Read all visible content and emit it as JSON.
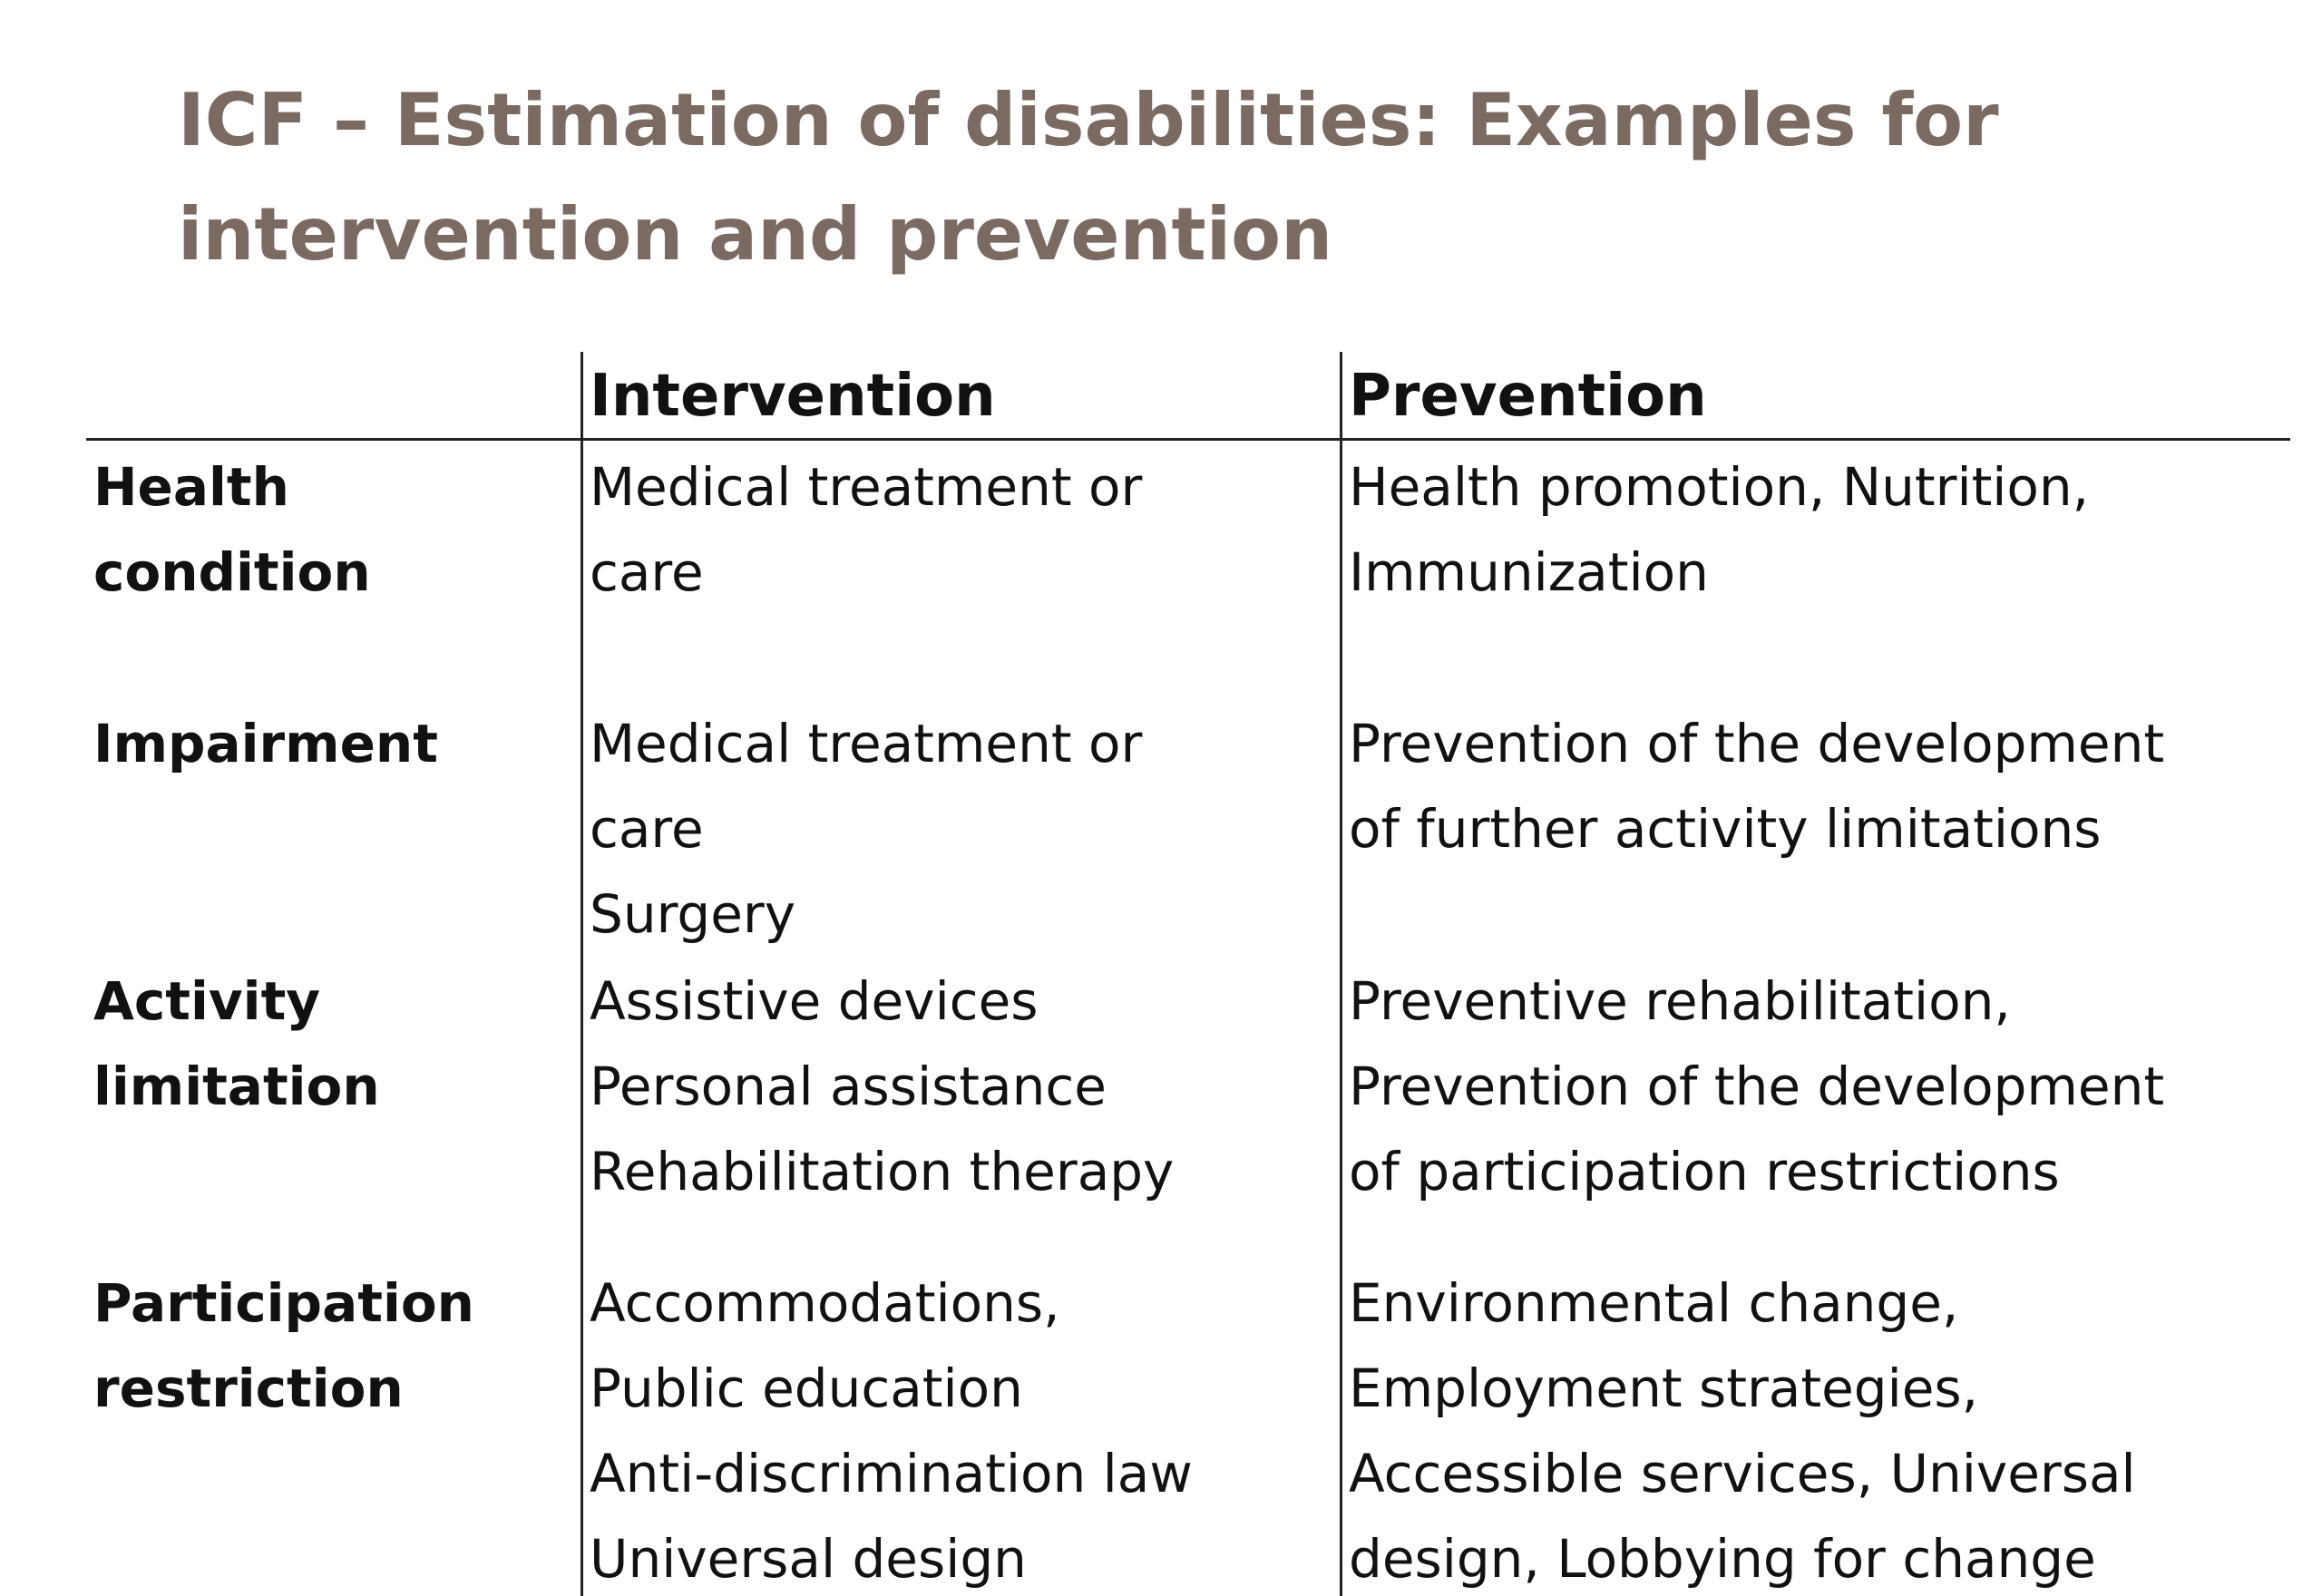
{
  "title": {
    "line1": "ICF – Estimation of disabilities: Examples for",
    "line2": "intervention and prevention"
  },
  "table": {
    "headers": [
      "Intervention",
      "Prevention"
    ],
    "rows": [
      {
        "label": [
          "Health",
          "condition"
        ],
        "intervention": [
          "Medical treatment or",
          "care"
        ],
        "prevention": [
          "Health promotion, Nutrition,",
          "Immunization"
        ]
      },
      {
        "label": [
          "Impairment"
        ],
        "intervention": [
          "Medical treatment or",
          "care",
          "Surgery"
        ],
        "prevention": [
          "Prevention of the development",
          "of further activity limitations"
        ]
      },
      {
        "label": [
          "Activity",
          "limitation"
        ],
        "intervention": [
          "Assistive devices",
          "Personal assistance",
          "Rehabilitation therapy"
        ],
        "prevention": [
          "Preventive rehabilitation,",
          "Prevention of the development",
          "of participation restrictions"
        ]
      },
      {
        "label": [
          "Participation",
          "restriction"
        ],
        "intervention": [
          "Accommodations,",
          "Public education",
          "Anti-discrimination law",
          "Universal design"
        ],
        "prevention": [
          "Environmental change,",
          "Employment strategies,",
          "Accessible services, Universal",
          "design, Lobbying for change"
        ]
      }
    ]
  }
}
